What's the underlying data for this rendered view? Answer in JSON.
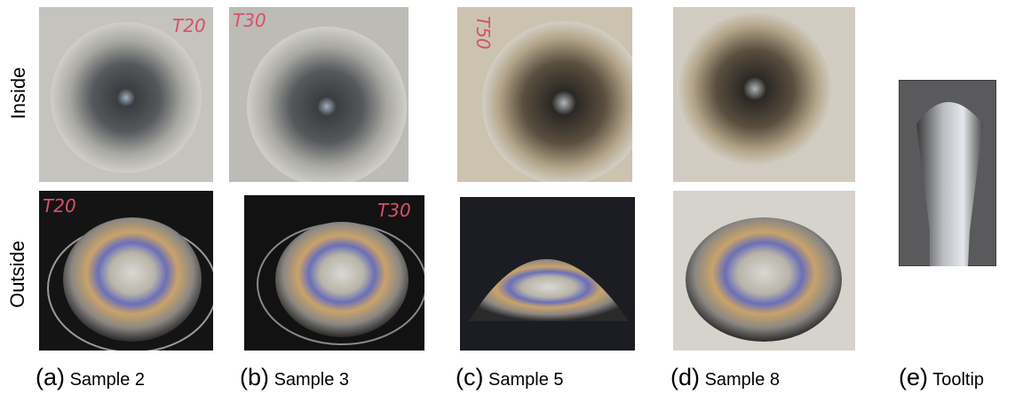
{
  "rows": [
    "Inside",
    "Outside"
  ],
  "panels": [
    {
      "letter": "(a)",
      "label": "Sample 2",
      "inside_mark": "T20",
      "outside_mark": "T20"
    },
    {
      "letter": "(b)",
      "label": "Sample 3",
      "inside_mark": "T30",
      "outside_mark": "T30"
    },
    {
      "letter": "(c)",
      "label": "Sample 5",
      "inside_mark": "T50"
    },
    {
      "letter": "(d)",
      "label": "Sample 8"
    }
  ],
  "tooltip": {
    "letter": "(e)",
    "label": "Tooltip"
  }
}
